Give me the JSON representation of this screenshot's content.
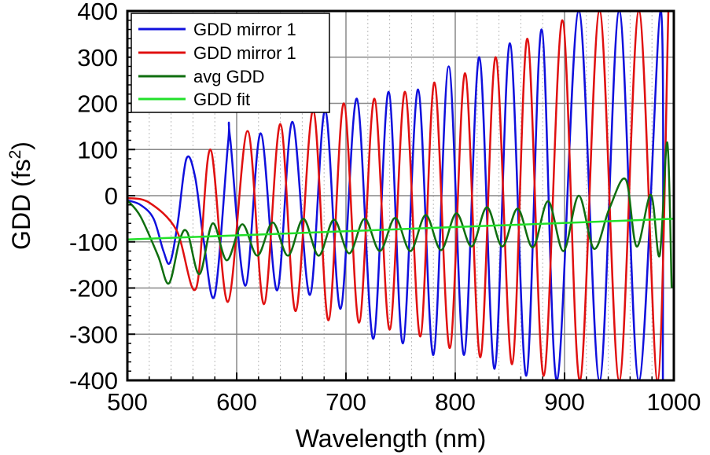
{
  "chart_data": {
    "type": "line",
    "xlabel": "Wavelength (nm)",
    "ylabel": {
      "text": "GDD (fs",
      "sup": "2",
      "close": ")"
    },
    "xlim": [
      500,
      1000
    ],
    "ylim": [
      -400,
      400
    ],
    "xticks": [
      500,
      600,
      700,
      800,
      900,
      1000
    ],
    "yticks": [
      400,
      300,
      200,
      100,
      0,
      -100,
      -200,
      -300,
      -400
    ],
    "xtick_labels": [
      "500",
      "600",
      "700",
      "800",
      "900",
      "1000"
    ],
    "ytick_labels": [
      "400",
      "300",
      "200",
      "100",
      "0",
      "-100",
      "-200",
      "-300",
      "-400"
    ],
    "grid": true,
    "legend_position": "top-left",
    "series": [
      {
        "name": "GDD mirror 1",
        "color": "#1010dd",
        "points": [
          [
            500,
            -10
          ],
          [
            512,
            -20
          ],
          [
            524,
            -50
          ],
          [
            533,
            -120
          ],
          [
            539,
            -145
          ],
          [
            546,
            -60
          ],
          [
            554,
            80
          ],
          [
            562,
            40
          ],
          [
            570,
            -100
          ],
          [
            580,
            -215
          ],
          [
            592,
            110
          ],
          [
            594,
            125
          ],
          [
            608,
            -195
          ],
          [
            622,
            135
          ],
          [
            637,
            -205
          ],
          [
            651,
            160
          ],
          [
            667,
            -215
          ],
          [
            681,
            185
          ],
          [
            695,
            -245
          ],
          [
            710,
            210
          ],
          [
            725,
            -310
          ],
          [
            739,
            225
          ],
          [
            752,
            -320
          ],
          [
            766,
            230
          ],
          [
            780,
            -345
          ],
          [
            794,
            280
          ],
          [
            808,
            -345
          ],
          [
            822,
            300
          ],
          [
            836,
            -375
          ],
          [
            850,
            330
          ],
          [
            865,
            -390
          ],
          [
            879,
            360
          ],
          [
            893,
            -400
          ],
          [
            913,
            400
          ],
          [
            932,
            -400
          ],
          [
            950,
            400
          ],
          [
            968,
            -400
          ],
          [
            988,
            400
          ],
          [
            990,
            -400
          ]
        ]
      },
      {
        "name": "GDD mirror 1",
        "color": "#e01010",
        "points": [
          [
            500,
            -5
          ],
          [
            520,
            -15
          ],
          [
            545,
            -75
          ],
          [
            563,
            -200
          ],
          [
            576,
            100
          ],
          [
            592,
            -230
          ],
          [
            610,
            140
          ],
          [
            625,
            -235
          ],
          [
            640,
            155
          ],
          [
            654,
            -250
          ],
          [
            670,
            185
          ],
          [
            684,
            -270
          ],
          [
            698,
            200
          ],
          [
            712,
            -275
          ],
          [
            726,
            210
          ],
          [
            740,
            -290
          ],
          [
            754,
            225
          ],
          [
            768,
            -305
          ],
          [
            781,
            245
          ],
          [
            795,
            -330
          ],
          [
            809,
            265
          ],
          [
            823,
            -350
          ],
          [
            837,
            300
          ],
          [
            852,
            -365
          ],
          [
            866,
            340
          ],
          [
            881,
            -390
          ],
          [
            898,
            380
          ],
          [
            914,
            -400
          ],
          [
            932,
            400
          ],
          [
            950,
            -400
          ],
          [
            968,
            400
          ],
          [
            985,
            -400
          ],
          [
            995,
            400
          ]
        ]
      },
      {
        "name": "avg GDD",
        "color": "#0f6e0f",
        "points": [
          [
            500,
            -10
          ],
          [
            512,
            -45
          ],
          [
            528,
            -130
          ],
          [
            538,
            -190
          ],
          [
            548,
            -95
          ],
          [
            555,
            -80
          ],
          [
            566,
            -170
          ],
          [
            578,
            -60
          ],
          [
            591,
            -140
          ],
          [
            605,
            -62
          ],
          [
            619,
            -130
          ],
          [
            633,
            -58
          ],
          [
            647,
            -130
          ],
          [
            661,
            -50
          ],
          [
            675,
            -130
          ],
          [
            689,
            -52
          ],
          [
            703,
            -125
          ],
          [
            717,
            -50
          ],
          [
            731,
            -120
          ],
          [
            745,
            -48
          ],
          [
            759,
            -120
          ],
          [
            773,
            -42
          ],
          [
            787,
            -118
          ],
          [
            801,
            -38
          ],
          [
            815,
            -110
          ],
          [
            829,
            -25
          ],
          [
            843,
            -110
          ],
          [
            857,
            -28
          ],
          [
            871,
            -112
          ],
          [
            885,
            -12
          ],
          [
            899,
            -120
          ],
          [
            913,
            0
          ],
          [
            927,
            -115
          ],
          [
            941,
            -28
          ],
          [
            956,
            35
          ],
          [
            966,
            -110
          ],
          [
            979,
            2
          ],
          [
            987,
            -130
          ],
          [
            994,
            115
          ],
          [
            998,
            -200
          ]
        ]
      },
      {
        "name": "GDD fit",
        "color": "#22e02a",
        "points": [
          [
            500,
            -95
          ],
          [
            1000,
            -50
          ]
        ]
      }
    ]
  }
}
